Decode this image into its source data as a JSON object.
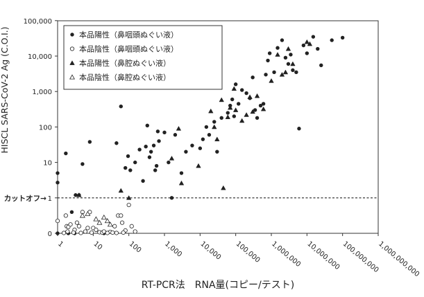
{
  "chart_data": {
    "type": "scatter",
    "xlabel": "RT-PCR法　RNA量(コピー/テスト)",
    "ylabel": "HISCL SARS-CoV-2 Ag (C.O.I.)",
    "x_scale": "log",
    "y_scale": "symlog",
    "xlim": [
      1,
      1000000000
    ],
    "ylim": [
      0,
      100000
    ],
    "x_ticks": [
      {
        "value": 1,
        "label": "1"
      },
      {
        "value": 10,
        "label": "10"
      },
      {
        "value": 100,
        "label": "100"
      },
      {
        "value": 1000,
        "label": "1,000"
      },
      {
        "value": 10000,
        "label": "10,000"
      },
      {
        "value": 100000,
        "label": "100,000"
      },
      {
        "value": 1000000,
        "label": "1,000,000"
      },
      {
        "value": 10000000,
        "label": "10,000,000"
      },
      {
        "value": 100000000,
        "label": "100,000,000"
      },
      {
        "value": 1000000000,
        "label": "1,000,000,000"
      }
    ],
    "y_ticks": [
      {
        "value": 0,
        "label": "0"
      },
      {
        "value": 1,
        "label": "1"
      },
      {
        "value": 10,
        "label": "10"
      },
      {
        "value": 100,
        "label": "100"
      },
      {
        "value": 1000,
        "label": "1,000"
      },
      {
        "value": 10000,
        "label": "10,000"
      },
      {
        "value": 100000,
        "label": "100,000"
      }
    ],
    "cutoff": {
      "value": 1,
      "label": "カットオフ→"
    },
    "legend_position": "top-left",
    "series": [
      {
        "name": "本品陽性（鼻咽頭ぬぐい液）",
        "marker": "filled-circle",
        "points": [
          [
            1,
            5
          ],
          [
            1,
            2.7
          ],
          [
            1.7,
            18
          ],
          [
            3.2,
            1.2
          ],
          [
            4,
            1.2
          ],
          [
            5,
            9
          ],
          [
            8,
            38
          ],
          [
            45,
            35
          ],
          [
            60,
            380
          ],
          [
            80,
            7
          ],
          [
            95,
            15
          ],
          [
            110,
            6
          ],
          [
            150,
            10
          ],
          [
            200,
            23
          ],
          [
            250,
            3
          ],
          [
            300,
            28
          ],
          [
            330,
            110
          ],
          [
            380,
            14
          ],
          [
            420,
            20
          ],
          [
            500,
            30
          ],
          [
            550,
            6
          ],
          [
            600,
            8
          ],
          [
            650,
            75
          ],
          [
            700,
            40
          ],
          [
            1000,
            70
          ],
          [
            1300,
            10
          ],
          [
            1600,
            1
          ],
          [
            2000,
            60
          ],
          [
            3000,
            5
          ],
          [
            4000,
            20
          ],
          [
            6000,
            30
          ],
          [
            10000,
            25
          ],
          [
            12000,
            45
          ],
          [
            15000,
            100
          ],
          [
            18000,
            60
          ],
          [
            25000,
            140
          ],
          [
            30000,
            20
          ],
          [
            40000,
            180
          ],
          [
            60000,
            250
          ],
          [
            70000,
            400
          ],
          [
            80000,
            600
          ],
          [
            90000,
            200
          ],
          [
            100000,
            1600
          ],
          [
            120000,
            450
          ],
          [
            150000,
            1100
          ],
          [
            200000,
            900
          ],
          [
            250000,
            650
          ],
          [
            300000,
            2500
          ],
          [
            350000,
            300
          ],
          [
            400000,
            180
          ],
          [
            500000,
            400
          ],
          [
            600000,
            450
          ],
          [
            700000,
            3000
          ],
          [
            800000,
            7500
          ],
          [
            900000,
            12000
          ],
          [
            1200000,
            3500
          ],
          [
            1500000,
            17000
          ],
          [
            2000000,
            28000
          ],
          [
            2500000,
            9000
          ],
          [
            3000000,
            6000
          ],
          [
            3500000,
            11000
          ],
          [
            4000000,
            4000
          ],
          [
            5000000,
            3500
          ],
          [
            6000000,
            90
          ],
          [
            8000000,
            20000
          ],
          [
            10000000,
            12000
          ],
          [
            15000000,
            35000
          ],
          [
            20000000,
            16000
          ],
          [
            25000000,
            5500
          ],
          [
            50000000,
            28000
          ],
          [
            100000000,
            33000
          ],
          [
            1,
            0
          ],
          [
            2,
            0
          ],
          [
            3,
            0
          ],
          [
            2.5,
            0.6
          ],
          [
            20,
            0
          ]
        ]
      },
      {
        "name": "本品陰性（鼻咽頭ぬぐい液）",
        "marker": "open-circle",
        "points": [
          [
            1,
            0.35
          ],
          [
            1.7,
            0.5
          ],
          [
            1.8,
            0.2
          ],
          [
            1.9,
            0.05
          ],
          [
            2,
            0.18
          ],
          [
            2.3,
            0.25
          ],
          [
            3,
            0.1
          ],
          [
            3.5,
            0.3
          ],
          [
            4,
            0.2
          ],
          [
            5,
            0.6
          ],
          [
            6,
            0.05
          ],
          [
            7,
            0.15
          ],
          [
            8,
            0.6
          ],
          [
            10,
            0.15
          ],
          [
            12,
            0.1
          ],
          [
            15,
            0.03
          ],
          [
            18,
            0.02
          ],
          [
            20,
            0.05
          ],
          [
            30,
            0.04
          ],
          [
            40,
            0.2
          ],
          [
            50,
            0.5
          ],
          [
            60,
            0.5
          ],
          [
            65,
            0.3
          ],
          [
            80,
            0.08
          ],
          [
            100,
            0.8
          ],
          [
            120,
            0.2
          ],
          [
            150,
            0.05
          ],
          [
            1.5,
            0.01
          ],
          [
            2.8,
            0.02
          ],
          [
            4.5,
            0.01
          ],
          [
            9,
            0.02
          ],
          [
            25,
            0.01
          ],
          [
            35,
            0.02
          ],
          [
            45,
            0.01
          ],
          [
            70,
            0.02
          ]
        ]
      },
      {
        "name": "本品陽性（鼻腔ぬぐい液）",
        "marker": "filled-triangle",
        "points": [
          [
            4,
            1.2
          ],
          [
            60,
            1.6
          ],
          [
            100,
            1
          ],
          [
            1600,
            13
          ],
          [
            2500,
            90
          ],
          [
            3000,
            2.6
          ],
          [
            9000,
            8
          ],
          [
            20000,
            280
          ],
          [
            25000,
            100
          ],
          [
            30000,
            45
          ],
          [
            40000,
            580
          ],
          [
            45000,
            1.9
          ],
          [
            60000,
            190
          ],
          [
            70000,
            350
          ],
          [
            90000,
            1200
          ],
          [
            100000,
            300
          ],
          [
            150000,
            150
          ],
          [
            200000,
            220
          ],
          [
            250000,
            700
          ],
          [
            300000,
            270
          ],
          [
            400000,
            750
          ],
          [
            600000,
            320
          ],
          [
            1000000,
            2000
          ],
          [
            1500000,
            11000
          ],
          [
            2000000,
            3000
          ],
          [
            2500000,
            3500
          ],
          [
            3000000,
            16000
          ],
          [
            4000000,
            6000
          ],
          [
            10000000,
            25000
          ],
          [
            12000000,
            22000
          ]
        ]
      },
      {
        "name": "本品陰性（鼻腔ぬぐい液）",
        "marker": "open-triangle",
        "points": [
          [
            5,
            0.5
          ],
          [
            7,
            0.55
          ],
          [
            12,
            0.4
          ],
          [
            15,
            0.3
          ],
          [
            20,
            0.45
          ],
          [
            25,
            0.35
          ],
          [
            30,
            0.25
          ]
        ]
      }
    ]
  }
}
